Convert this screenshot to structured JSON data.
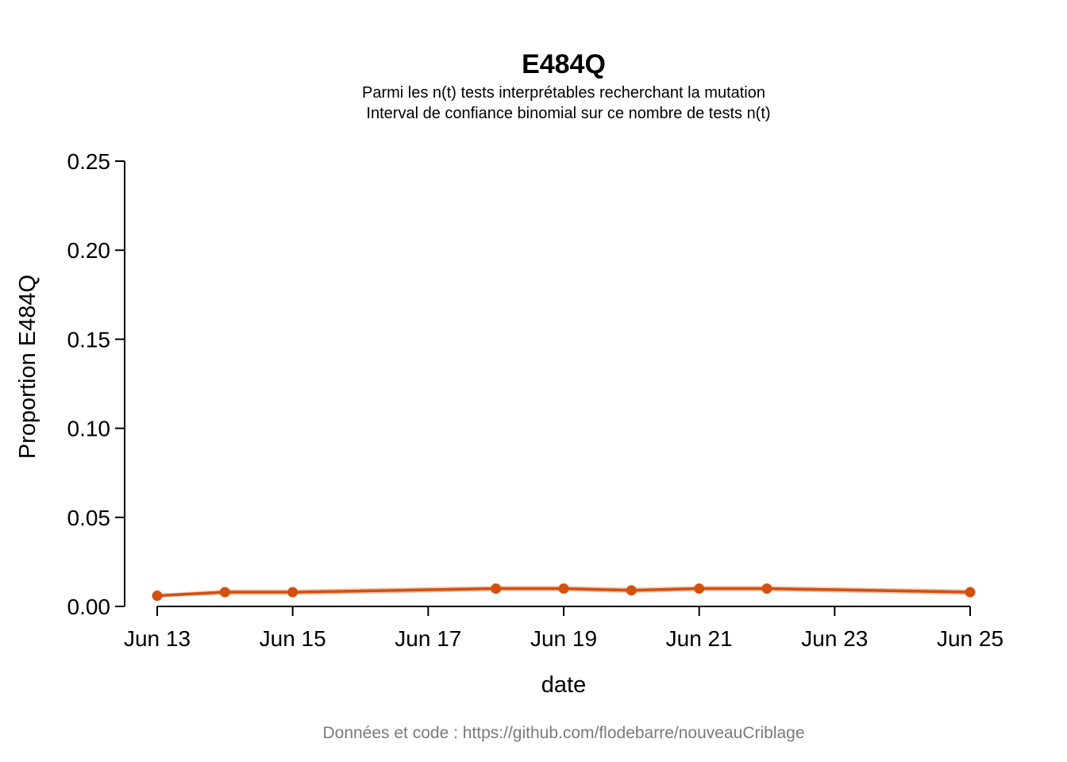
{
  "chart_data": {
    "type": "line",
    "title": "E484Q",
    "subtitle_line1": "Parmi les n(t) tests interprétables recherchant la mutation",
    "subtitle_line2": "Interval de confiance binomial sur ce nombre de tests n(t)",
    "xlabel": "date",
    "ylabel": "Proportion E484Q",
    "caption": "Données et code : https://github.com/flodebarre/nouveauCriblage",
    "ylim": [
      0,
      0.25
    ],
    "y_ticks": [
      0,
      0.05,
      0.1,
      0.15,
      0.2,
      0.25
    ],
    "y_tick_labels": [
      "0.00",
      "0.05",
      "0.10",
      "0.15",
      "0.20",
      "0.25"
    ],
    "xlim": [
      13,
      25
    ],
    "x_ticks": [
      13,
      15,
      17,
      19,
      21,
      23,
      25
    ],
    "x_tick_labels": [
      "Jun 13",
      "Jun 15",
      "Jun 17",
      "Jun 19",
      "Jun 21",
      "Jun 23",
      "Jun 25"
    ],
    "series": [
      {
        "name": "E484Q",
        "color": "#d4500f",
        "band_color": "#f0b79a",
        "x": [
          13,
          14,
          15,
          18,
          19,
          20,
          21,
          22,
          25
        ],
        "values": [
          0.006,
          0.008,
          0.008,
          0.01,
          0.01,
          0.009,
          0.01,
          0.01,
          0.008
        ],
        "lower": [
          0.005,
          0.0065,
          0.0065,
          0.0085,
          0.0085,
          0.0075,
          0.0085,
          0.0085,
          0.0065
        ],
        "upper": [
          0.007,
          0.0095,
          0.0095,
          0.0115,
          0.0115,
          0.0105,
          0.0115,
          0.0115,
          0.0095
        ]
      }
    ]
  }
}
